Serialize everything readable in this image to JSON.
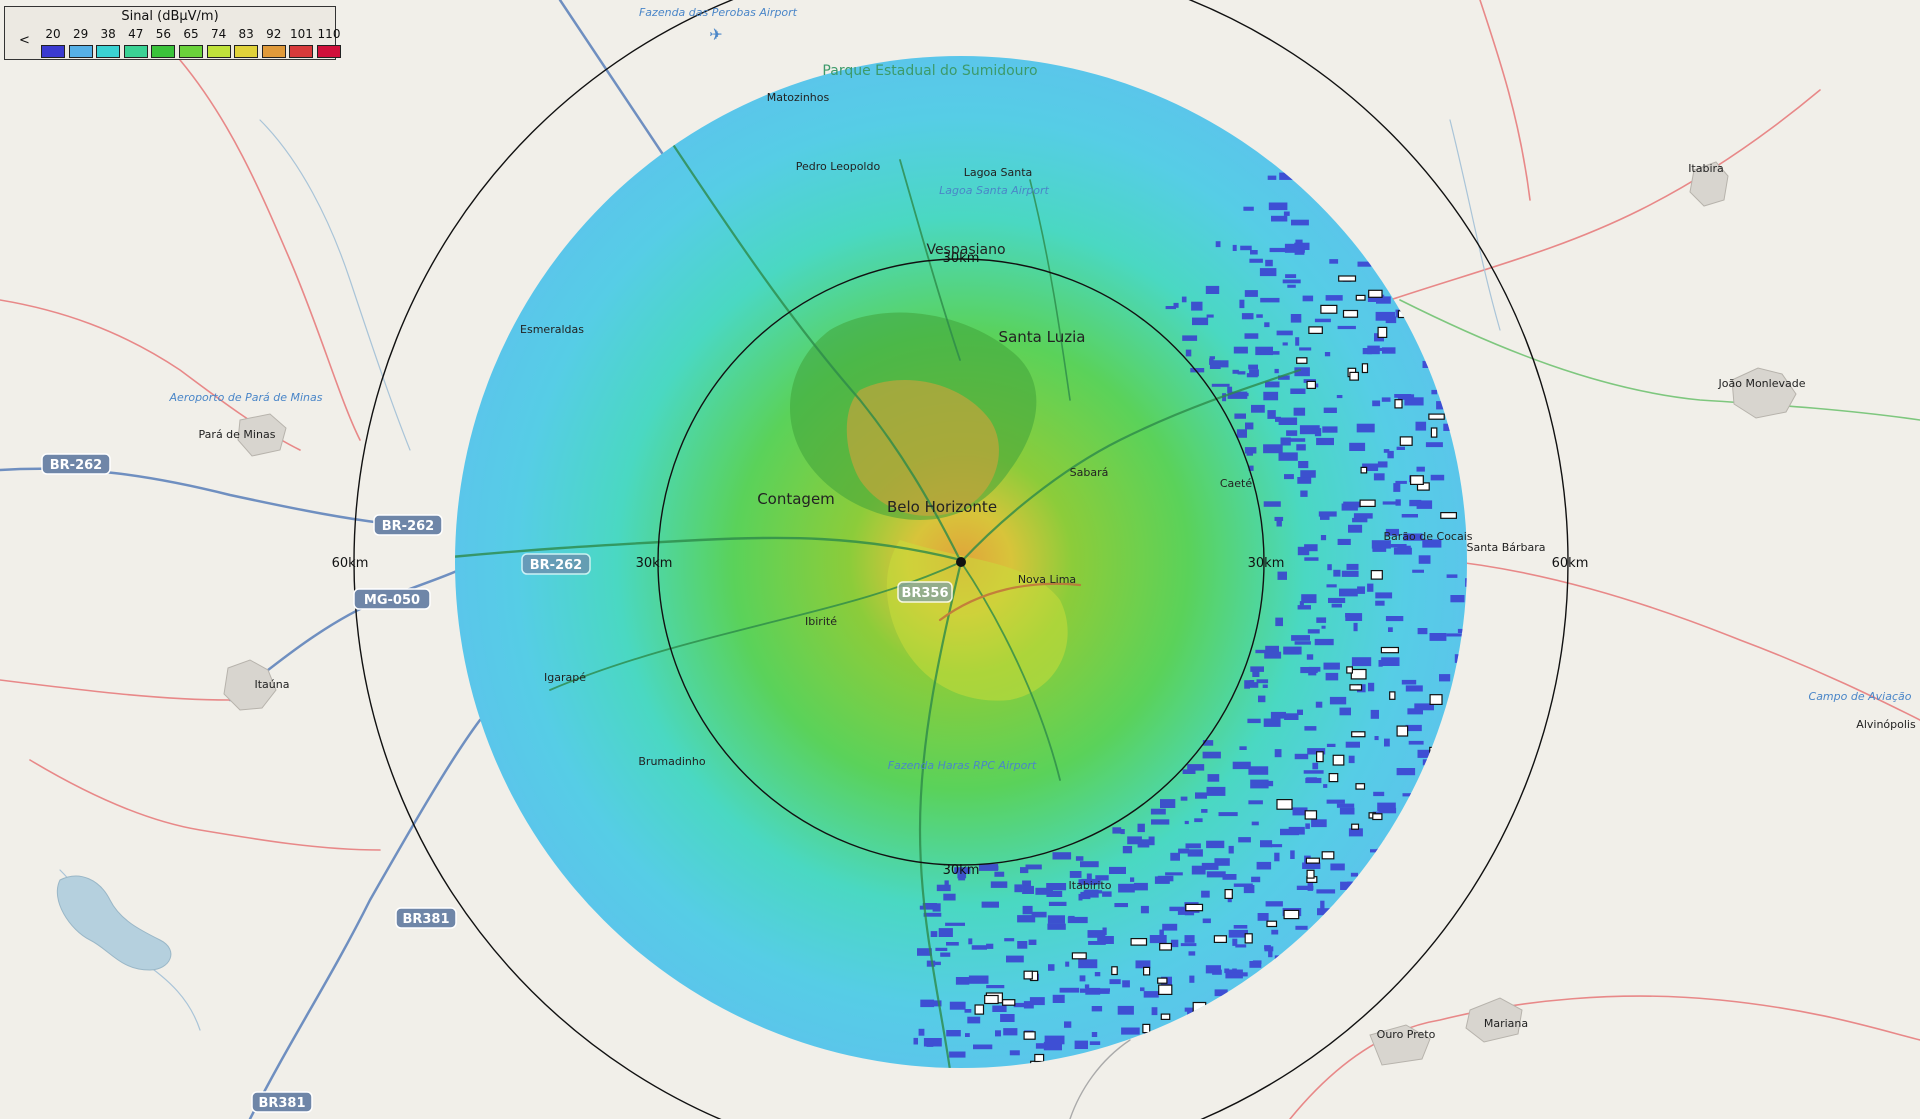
{
  "legend": {
    "title": "Sinal (dBµV/m)",
    "left_arrow": "<",
    "ticks": [
      "20",
      "29",
      "38",
      "47",
      "56",
      "65",
      "74",
      "83",
      "92",
      "101",
      "110"
    ],
    "colors": [
      "#3a3ad0",
      "#56b0e6",
      "#3ad2d2",
      "#3ad294",
      "#3ac23a",
      "#6ad23a",
      "#c0e23a",
      "#e0d23a",
      "#e09a3a",
      "#d83a3a",
      "#d0103a"
    ]
  },
  "signal_colors": {
    "weak": "#3a3ad0",
    "low": "#56c8ee",
    "medium_low": "#4be0d2",
    "medium": "#5ad85a",
    "strong": "#3aa83a",
    "high": "#c8dc3a",
    "very_high": "#e0a03a"
  },
  "range_rings": {
    "inner_label": "30km",
    "outer_label": "60km"
  },
  "places": {
    "belo_horizonte": "Belo Horizonte",
    "contagem": "Contagem",
    "santa_luzia": "Santa Luzia",
    "vespasiano": "Vespasiano",
    "matozinhos": "Matozinhos",
    "pedro_leopoldo": "Pedro Leopoldo",
    "lagoa_santa": "Lagoa Santa",
    "esmeraldas": "Esmeraldas",
    "para_de_minas": "Pará de Minas",
    "sabara": "Sabará",
    "caete": "Caeté",
    "barao_de_cocais": "Barão de Cocais",
    "santa_barbara": "Santa Bárbara",
    "itabira": "Itabira",
    "joao_monlevade": "João Monlevade",
    "alvinopolis": "Alvinópolis",
    "nova_lima": "Nova Lima",
    "ibirite": "Ibirité",
    "igarape": "Igarapé",
    "brumadinho": "Brumadinho",
    "itauna": "Itaúna",
    "itabirito": "Itabirito",
    "ouro_preto": "Ouro Preto",
    "mariana": "Mariana"
  },
  "pois": {
    "perobas_airport": "Fazenda das Perobas Airport",
    "para_de_minas_airport": "Aeroporto de Pará de Minas",
    "sumidouro_park": "Parque Estadual do Sumidouro",
    "lagoa_santa_airport": "Lagoa Santa Airport",
    "haras_airport": "Fazenda Haras RPC Airport",
    "campo_aviacao": "Campo de Aviação"
  },
  "roads": {
    "br262_a": "BR-262",
    "br262_b": "BR-262",
    "br262_c": "BR-262",
    "mg050": "MG-050",
    "br356": "BR356",
    "br381_a": "BR381",
    "br381_b": "BR381"
  }
}
